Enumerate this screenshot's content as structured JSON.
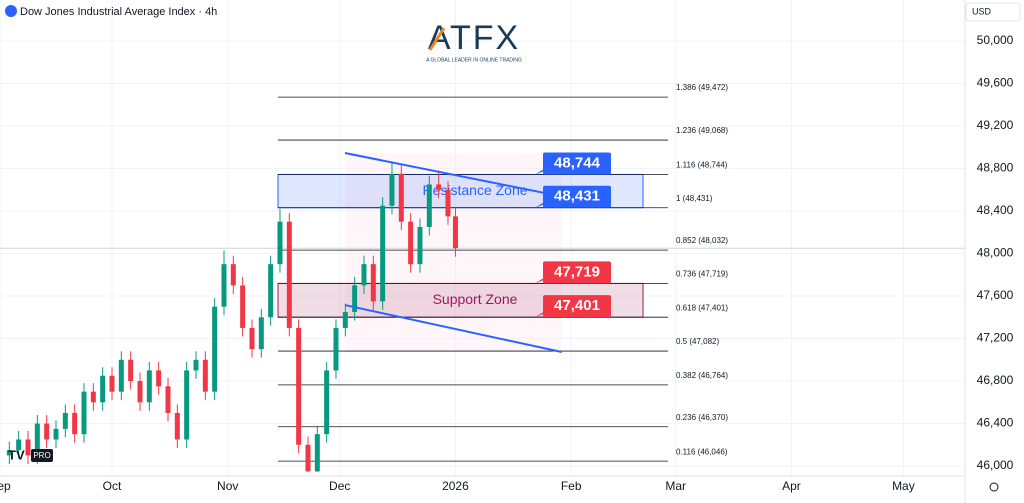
{
  "chart_data": {
    "type": "candlestick",
    "title": "Dow Jones Industrial Average Index · 4h",
    "currency": "USD",
    "logo": "ATFX",
    "logo_tagline": "A GLOBAL LEADER IN ONLINE TRADING",
    "badge": "PRO",
    "up_color": "#089981",
    "down_color": "#f23645",
    "x": [
      2.5,
      5,
      7.5,
      10,
      12.5,
      15,
      17.5,
      20,
      22.5,
      25,
      27.5,
      30,
      32.5,
      35,
      37.5,
      40,
      42.5,
      45,
      47.5,
      50,
      52.5,
      55,
      57.5,
      60,
      62.5,
      65,
      67.5,
      70,
      72.5,
      75,
      77.5,
      80,
      82.5,
      85,
      87.5,
      90,
      92.5,
      95,
      97.5,
      100,
      102.5,
      105,
      107.5,
      110,
      112.5,
      115,
      117.5,
      120,
      122
    ],
    "open": [
      46100,
      46150,
      46250,
      46100,
      46400,
      46250,
      46350,
      46500,
      46300,
      46700,
      46600,
      46850,
      46700,
      47000,
      46800,
      46600,
      46900,
      46750,
      46500,
      46250,
      46900,
      47000,
      46700,
      47500,
      47900,
      47700,
      47300,
      47100,
      47400,
      47900,
      48300,
      47300,
      46200,
      45950,
      46300,
      46900,
      47300,
      47450,
      47700,
      47900,
      47550,
      48450,
      48750,
      48300,
      47900,
      48250,
      48650,
      48600,
      48350
    ],
    "high": [
      46230,
      46330,
      46330,
      46480,
      46480,
      46430,
      46580,
      46580,
      46780,
      46780,
      46930,
      46930,
      47080,
      47080,
      46880,
      46980,
      46980,
      46830,
      46580,
      46980,
      47080,
      47080,
      47580,
      48030,
      47980,
      47780,
      47380,
      47480,
      47980,
      48420,
      48380,
      47380,
      46280,
      46380,
      46980,
      47380,
      47530,
      47780,
      47980,
      47980,
      48530,
      48850,
      48830,
      48380,
      48330,
      48730,
      48780,
      48680,
      48430
    ],
    "low": [
      46020,
      46070,
      46020,
      46020,
      46170,
      46170,
      46270,
      46220,
      46220,
      46520,
      46520,
      46620,
      46620,
      46720,
      46520,
      46520,
      46670,
      46420,
      46170,
      46170,
      46820,
      46620,
      46620,
      47420,
      47620,
      47220,
      47020,
      47020,
      47320,
      47820,
      47220,
      46120,
      45870,
      45870,
      46220,
      46820,
      47220,
      47370,
      47620,
      47470,
      47470,
      48370,
      48220,
      47820,
      47820,
      48170,
      48520,
      48270,
      47970
    ],
    "close": [
      46150,
      46250,
      46100,
      46400,
      46250,
      46350,
      46500,
      46300,
      46700,
      46600,
      46850,
      46700,
      47000,
      46800,
      46600,
      46900,
      46750,
      46500,
      46250,
      46900,
      47000,
      46700,
      47500,
      47900,
      47700,
      47300,
      47100,
      47400,
      47900,
      48300,
      47300,
      46200,
      45950,
      46300,
      46900,
      47300,
      47450,
      47700,
      47900,
      47550,
      48450,
      48750,
      48300,
      47900,
      48250,
      48650,
      48600,
      48350,
      48050
    ],
    "xlim": [
      0,
      258.5
    ],
    "ylim": [
      45944,
      50386
    ],
    "xticks": [
      {
        "value": 0,
        "label": "Sep"
      },
      {
        "value": 30,
        "label": "Oct"
      },
      {
        "value": 61,
        "label": "Nov"
      },
      {
        "value": 91,
        "label": "Dec"
      },
      {
        "value": 122,
        "label": "2026"
      },
      {
        "value": 153,
        "label": "Feb"
      },
      {
        "value": 181,
        "label": "Mar"
      },
      {
        "value": 212,
        "label": "Apr"
      },
      {
        "value": 242,
        "label": "May"
      }
    ],
    "yticks": [
      {
        "value": 50000,
        "label": "50,000"
      },
      {
        "value": 49600,
        "label": "49,600"
      },
      {
        "value": 49200,
        "label": "49,200"
      },
      {
        "value": 48800,
        "label": "48,800"
      },
      {
        "value": 48400,
        "label": "48,400"
      },
      {
        "value": 48000,
        "label": "48,000"
      },
      {
        "value": 47600,
        "label": "47,600"
      },
      {
        "value": 47200,
        "label": "47,200"
      },
      {
        "value": 46800,
        "label": "46,800"
      },
      {
        "value": 46400,
        "label": "46,400"
      },
      {
        "value": 46000,
        "label": "46,000"
      }
    ],
    "grid": true,
    "fib_levels": [
      {
        "value": 49472,
        "label": "1.386 (49,472)"
      },
      {
        "value": 49068,
        "label": "1.236 (49,068)"
      },
      {
        "value": 48744,
        "label": "1.116 (48,744)"
      },
      {
        "value": 48431,
        "label": "1 (48,431)"
      },
      {
        "value": 48032,
        "label": "0.852 (48,032)"
      },
      {
        "value": 47719,
        "label": "0.736 (47,719)"
      },
      {
        "value": 47401,
        "label": "0.618 (47,401)"
      },
      {
        "value": 47082,
        "label": "0.5 (47,082)"
      },
      {
        "value": 46764,
        "label": "0.382 (46,764)"
      },
      {
        "value": 46370,
        "label": "0.236 (46,370)"
      },
      {
        "value": 46046,
        "label": "0.116 (46,046)"
      }
    ],
    "zones": [
      {
        "name": "Resistance Zone",
        "low": 48431,
        "high": 48744,
        "color": "#2962ff"
      },
      {
        "name": "Support Zone",
        "low": 47401,
        "high": 47719,
        "color": "#9c1a5a"
      }
    ],
    "price_tags": [
      {
        "value": 48744,
        "label": "48,744",
        "color": "#2962ff"
      },
      {
        "value": 48431,
        "label": "48,431",
        "color": "#2962ff"
      },
      {
        "value": 47719,
        "label": "47,719",
        "color": "#f23645"
      },
      {
        "value": 47401,
        "label": "47,401",
        "color": "#f23645"
      }
    ],
    "trendlines": [
      {
        "x": [
          92.4,
          150
        ],
        "y": [
          48946,
          48541
        ]
      },
      {
        "x": [
          92.4,
          150.5
        ],
        "y": [
          47515,
          47073
        ]
      }
    ]
  }
}
